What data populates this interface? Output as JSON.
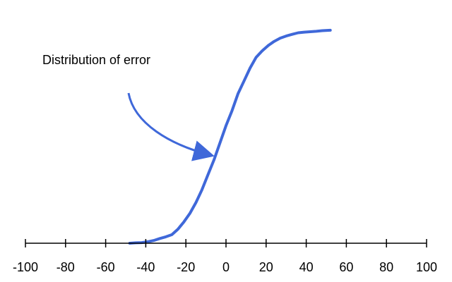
{
  "chart_data": {
    "type": "line",
    "title": "",
    "xlabel": "",
    "ylabel": "",
    "xlim": [
      -100,
      100
    ],
    "ylim": [
      0,
      1
    ],
    "grid": false,
    "y_axis_shown": false,
    "x_ticks": [
      -100,
      -80,
      -60,
      -40,
      -20,
      0,
      20,
      40,
      60,
      80,
      100
    ],
    "x_tick_labels": [
      "-100",
      "-80",
      "-60",
      "-40",
      "-20",
      "0",
      "20",
      "40",
      "60",
      "80",
      "100"
    ],
    "series": [
      {
        "color": "#3f68d9",
        "x": [
          -48,
          -45,
          -42,
          -39,
          -36,
          -33,
          -30,
          -27,
          -24,
          -21,
          -18,
          -15,
          -12,
          -9,
          -6,
          -3,
          0,
          3,
          6,
          9,
          12,
          15,
          18,
          21,
          24,
          27,
          30,
          33,
          36,
          39,
          42,
          45,
          48,
          52
        ],
        "y": [
          0.0,
          0.002,
          0.003,
          0.007,
          0.013,
          0.022,
          0.03,
          0.04,
          0.065,
          0.1,
          0.14,
          0.19,
          0.25,
          0.32,
          0.39,
          0.47,
          0.55,
          0.62,
          0.7,
          0.76,
          0.82,
          0.87,
          0.9,
          0.925,
          0.945,
          0.96,
          0.97,
          0.978,
          0.985,
          0.988,
          0.99,
          0.992,
          0.995,
          0.997
        ]
      }
    ],
    "annotations": [
      {
        "text": "Distribution of error",
        "arrow_to": {
          "x": -6,
          "y": 0.41
        }
      }
    ]
  }
}
